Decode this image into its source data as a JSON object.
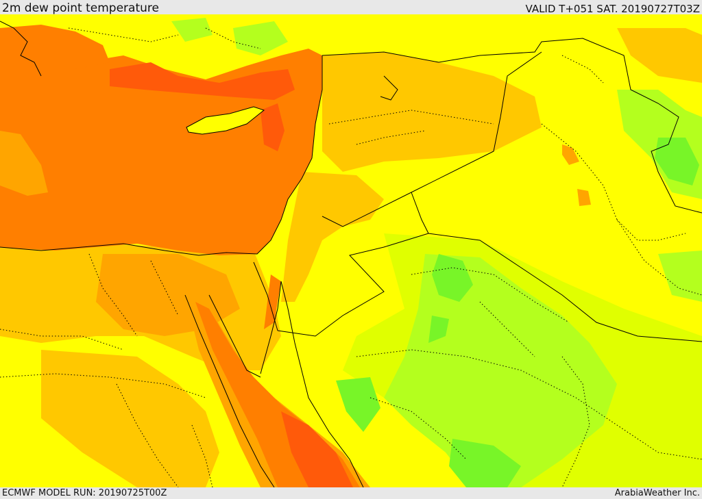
{
  "header": {
    "title": "2m dew point temperature",
    "valid": "VALID T+051 SAT. 20190727T03Z"
  },
  "footer": {
    "model_run": "ECMWF MODEL RUN: 20190725T00Z",
    "credit": "ArabiaWeather Inc."
  },
  "colors": {
    "yellow": "#ffff00",
    "yellow_green": "#e0ff00",
    "light_green": "#b4ff1e",
    "green": "#78f528",
    "amber": "#ffc800",
    "orange": "#ffa500",
    "dark_orange": "#ff7f00",
    "red_orange": "#ff5a0a",
    "border": "#000000"
  }
}
